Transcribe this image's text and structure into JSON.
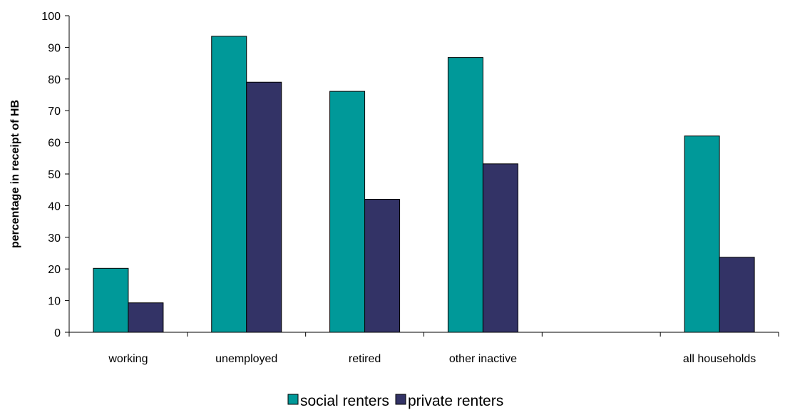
{
  "chart_data": {
    "type": "bar",
    "categories": [
      "working",
      "unemployed",
      "retired",
      "other inactive",
      "",
      "all households"
    ],
    "series": [
      {
        "name": "social renters",
        "color": "#009999",
        "values": [
          20.2,
          93.5,
          76.1,
          86.8,
          null,
          62.0
        ]
      },
      {
        "name": "private renters",
        "color": "#333366",
        "values": [
          9.3,
          79.0,
          42.0,
          53.2,
          null,
          23.7
        ]
      }
    ],
    "title": "",
    "xlabel": "",
    "ylabel": "percentage in receipt of HB",
    "ylim": [
      0,
      100
    ],
    "yticks": [
      0,
      10,
      20,
      30,
      40,
      50,
      60,
      70,
      80,
      90,
      100
    ],
    "grid": false,
    "legend_position": "bottom"
  }
}
